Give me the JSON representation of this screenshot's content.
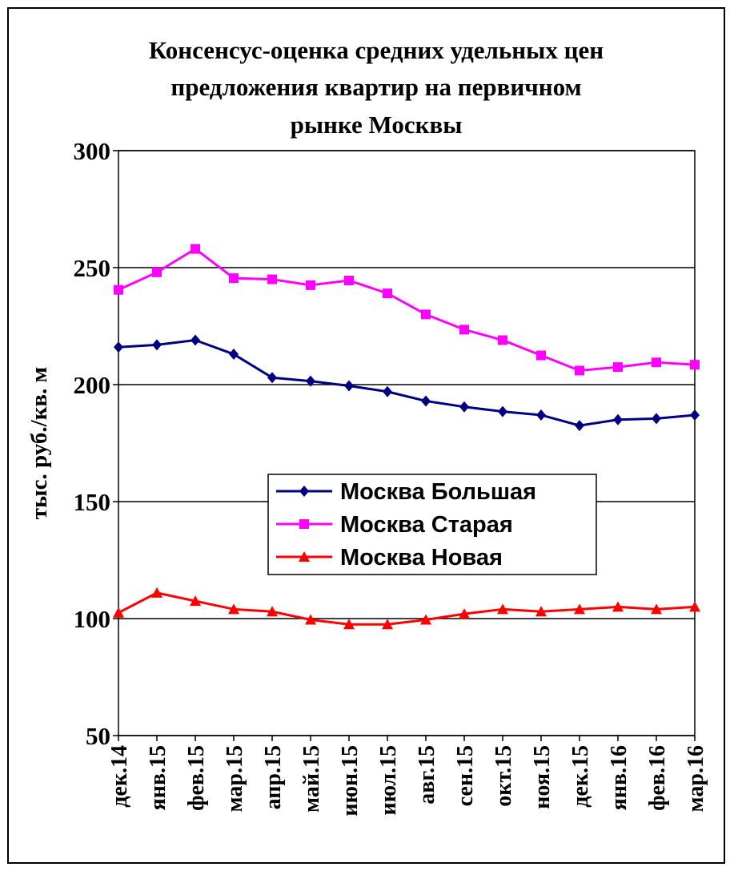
{
  "chart_data": {
    "type": "line",
    "title": [
      "Консенсус-оценка средних удельных цен",
      "предложения квартир на первичном",
      "рынке Москвы"
    ],
    "y_label": "тыс. руб./кв. м",
    "categories": [
      "дек.14",
      "янв.15",
      "фев.15",
      "мар.15",
      "апр.15",
      "май.15",
      "июн.15",
      "июл.15",
      "авг.15",
      "сен.15",
      "окт.15",
      "ноя.15",
      "дек.15",
      "янв.16",
      "фев.16",
      "мар.16"
    ],
    "series": [
      {
        "name": "Москва Большая",
        "color": "#000080",
        "marker": "diamond",
        "values": [
          216,
          217,
          219,
          213,
          203,
          201.5,
          199.5,
          197,
          193,
          190.5,
          188.5,
          187,
          182.5,
          185,
          185.5,
          187
        ]
      },
      {
        "name": "Москва Старая",
        "color": "#ff00ff",
        "marker": "square",
        "values": [
          240.5,
          248,
          258,
          245.5,
          245,
          242.5,
          244.5,
          239,
          230,
          223.5,
          219,
          212.5,
          206,
          207.5,
          209.5,
          208.5
        ]
      },
      {
        "name": "Москва Новая",
        "color": "#ff0000",
        "marker": "triangle",
        "values": [
          102.5,
          111,
          107.5,
          104,
          103,
          99.5,
          97.5,
          97.5,
          99.5,
          102,
          104,
          103,
          104,
          105,
          104,
          105
        ]
      }
    ],
    "ylim": [
      50,
      300
    ],
    "yticks": [
      50,
      100,
      150,
      200,
      250,
      300
    ],
    "grid": true
  }
}
